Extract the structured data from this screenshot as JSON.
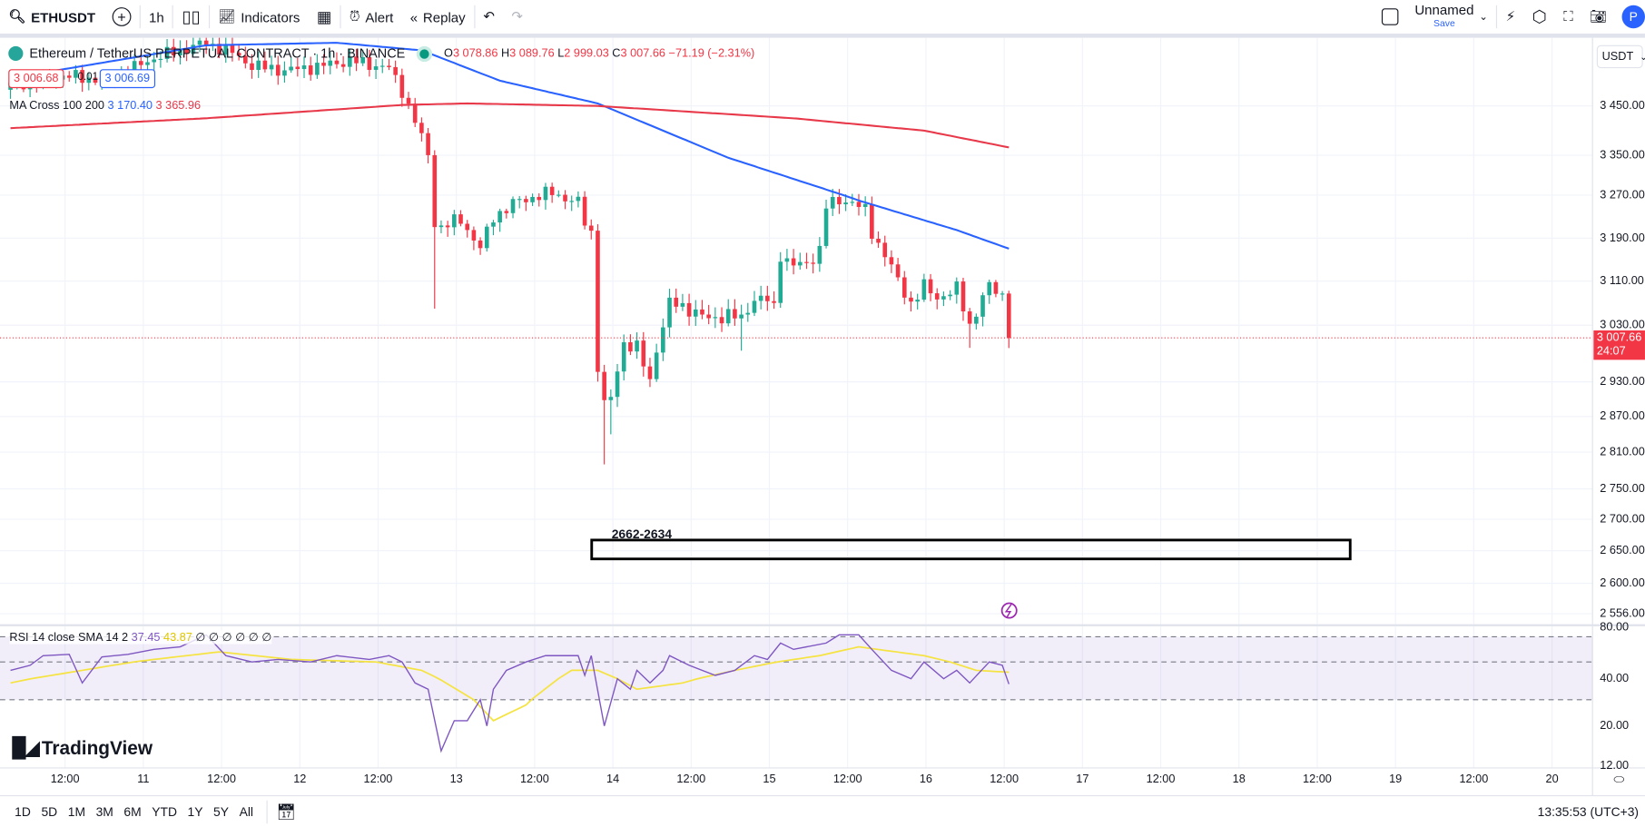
{
  "toolbar": {
    "symbol": "ETHUSDT",
    "interval": "1h",
    "indicators": "Indicators",
    "alert": "Alert",
    "replay": "Replay",
    "layout_name": "Unnamed",
    "save": "Save",
    "avatar": "P"
  },
  "legend": {
    "title": "Ethereum / TetherUS PERPETUAL CONTRACT · 1h · BINANCE",
    "o_label": "O",
    "o": "3 078.86",
    "h_label": "H",
    "h": "3 089.76",
    "l_label": "L",
    "l": "2 999.03",
    "c_label": "C",
    "c": "3 007.66",
    "change": "−71.19 (−2.31%)",
    "bid": "3 006.68",
    "spread": "0.01",
    "ask": "3 006.69"
  },
  "ma": {
    "label": "MA Cross 100 200",
    "v1": "3 170.40",
    "v2": "3 365.96"
  },
  "rsi": {
    "label": "RSI 14 close SMA 14 2",
    "v1": "37.45",
    "v2": "43.87",
    "rest": "∅ ∅ ∅ ∅ ∅ ∅"
  },
  "price_axis": {
    "currency": "USDT",
    "ticks": [
      "3 450.00",
      "3 350.00",
      "3 270.00",
      "3 190.00",
      "3 110.00",
      "3 030.00",
      "2 930.00",
      "2 870.00",
      "2 810.00",
      "2 750.00",
      "2 700.00",
      "2 650.00",
      "2 600.00",
      "2 556.00"
    ],
    "tick_values": [
      3450,
      3350,
      3270,
      3190,
      3110,
      3030,
      2930,
      2870,
      2810,
      2750,
      2700,
      2650,
      2600,
      2556
    ],
    "last_price": "3 007.66",
    "countdown": "24:07"
  },
  "rsi_axis": {
    "ticks": [
      "80.00",
      "40.00",
      "20.00",
      "12.00"
    ]
  },
  "time_axis": [
    "12:00",
    "11",
    "12:00",
    "12",
    "12:00",
    "13",
    "12:00",
    "14",
    "12:00",
    "15",
    "12:00",
    "16",
    "12:00",
    "17",
    "12:00",
    "18",
    "12:00",
    "19",
    "12:00",
    "20"
  ],
  "zone": {
    "label": "2662-2634",
    "high": 2662,
    "low": 2634
  },
  "bottom": {
    "ranges": [
      "1D",
      "5D",
      "1M",
      "3M",
      "6M",
      "YTD",
      "1Y",
      "5Y",
      "All"
    ],
    "clock": "13:35:53 (UTC+3)"
  },
  "brand": "TradingView",
  "colors": {
    "up": "#22ab94",
    "down": "#f23645",
    "ma100": "#2962ff",
    "ma200": "#e8394a",
    "rsi": "#7e57c2",
    "rsi_sma": "#f5e342"
  },
  "chart_data": {
    "type": "candlestick",
    "close_path": [
      [
        0,
        3490
      ],
      [
        8,
        3510
      ],
      [
        15,
        3500
      ],
      [
        22,
        3545
      ],
      [
        30,
        3575
      ],
      [
        34,
        3555
      ],
      [
        37,
        3530
      ],
      [
        42,
        3520
      ],
      [
        47,
        3528
      ],
      [
        52,
        3540
      ],
      [
        56,
        3530
      ],
      [
        58,
        3525
      ],
      [
        60,
        3480
      ],
      [
        62,
        3420
      ],
      [
        64,
        3350
      ],
      [
        65,
        3220
      ],
      [
        66,
        3210
      ],
      [
        69,
        3225
      ],
      [
        72,
        3170
      ],
      [
        74,
        3230
      ],
      [
        78,
        3260
      ],
      [
        83,
        3275
      ],
      [
        87,
        3255
      ],
      [
        88,
        3220
      ],
      [
        89,
        3200
      ],
      [
        90,
        2960
      ],
      [
        91,
        2890
      ],
      [
        92,
        2900
      ],
      [
        94,
        3000
      ],
      [
        96,
        2990
      ],
      [
        98,
        2930
      ],
      [
        99,
        2990
      ],
      [
        101,
        3070
      ],
      [
        104,
        3060
      ],
      [
        107,
        3040
      ],
      [
        110,
        3050
      ],
      [
        112,
        3040
      ],
      [
        114,
        3080
      ],
      [
        116,
        3075
      ],
      [
        117,
        3060
      ],
      [
        118,
        3160
      ],
      [
        120,
        3140
      ],
      [
        122,
        3140
      ],
      [
        124,
        3170
      ],
      [
        125,
        3250
      ],
      [
        128,
        3262
      ],
      [
        130,
        3250
      ],
      [
        131,
        3240
      ],
      [
        132,
        3200
      ],
      [
        134,
        3160
      ],
      [
        136,
        3110
      ],
      [
        138,
        3070
      ],
      [
        140,
        3100
      ],
      [
        142,
        3080
      ],
      [
        145,
        3095
      ],
      [
        147,
        3030
      ],
      [
        149,
        3080
      ],
      [
        150,
        3100
      ],
      [
        152,
        3085
      ],
      [
        153,
        3007.66
      ]
    ],
    "long_wicks": [
      [
        65,
        3060
      ],
      [
        91,
        2790
      ],
      [
        92,
        2840
      ],
      [
        112,
        2985
      ],
      [
        147,
        2990
      ]
    ],
    "ma100": [
      [
        0,
        3505
      ],
      [
        30,
        3570
      ],
      [
        50,
        3575
      ],
      [
        63,
        3560
      ],
      [
        75,
        3500
      ],
      [
        90,
        3455
      ],
      [
        110,
        3345
      ],
      [
        130,
        3260
      ],
      [
        145,
        3205
      ],
      [
        153,
        3170.4
      ]
    ],
    "ma200": [
      [
        0,
        3405
      ],
      [
        30,
        3425
      ],
      [
        60,
        3452
      ],
      [
        70,
        3455
      ],
      [
        90,
        3450
      ],
      [
        120,
        3425
      ],
      [
        140,
        3400
      ],
      [
        153,
        3365.96
      ]
    ],
    "rsi": [
      [
        0,
        45
      ],
      [
        3,
        48
      ],
      [
        5,
        55
      ],
      [
        9,
        56
      ],
      [
        11,
        38
      ],
      [
        14,
        54
      ],
      [
        18,
        56
      ],
      [
        22,
        60
      ],
      [
        26,
        62
      ],
      [
        30,
        72
      ],
      [
        33,
        55
      ],
      [
        37,
        50
      ],
      [
        41,
        52
      ],
      [
        46,
        50
      ],
      [
        50,
        55
      ],
      [
        55,
        52
      ],
      [
        58,
        55
      ],
      [
        60,
        50
      ],
      [
        62,
        38
      ],
      [
        64,
        35
      ],
      [
        66,
        15
      ],
      [
        68,
        22
      ],
      [
        70,
        22
      ],
      [
        72,
        30
      ],
      [
        73,
        20
      ],
      [
        74,
        35
      ],
      [
        76,
        45
      ],
      [
        79,
        50
      ],
      [
        82,
        55
      ],
      [
        87,
        55
      ],
      [
        88,
        42
      ],
      [
        89,
        55
      ],
      [
        91,
        20
      ],
      [
        93,
        40
      ],
      [
        95,
        35
      ],
      [
        96,
        45
      ],
      [
        98,
        38
      ],
      [
        100,
        45
      ],
      [
        101,
        55
      ],
      [
        104,
        48
      ],
      [
        108,
        42
      ],
      [
        111,
        45
      ],
      [
        114,
        55
      ],
      [
        116,
        52
      ],
      [
        118,
        65
      ],
      [
        120,
        60
      ],
      [
        125,
        65
      ],
      [
        127,
        72
      ],
      [
        130,
        72
      ],
      [
        132,
        60
      ],
      [
        135,
        45
      ],
      [
        138,
        40
      ],
      [
        140,
        50
      ],
      [
        143,
        40
      ],
      [
        145,
        45
      ],
      [
        147,
        38
      ],
      [
        150,
        50
      ],
      [
        152,
        48
      ],
      [
        153,
        37.45
      ]
    ],
    "rsi_sma": [
      [
        0,
        38
      ],
      [
        11,
        45
      ],
      [
        22,
        52
      ],
      [
        32,
        58
      ],
      [
        43,
        52
      ],
      [
        56,
        50
      ],
      [
        63,
        45
      ],
      [
        71,
        30
      ],
      [
        74,
        22
      ],
      [
        79,
        28
      ],
      [
        86,
        45
      ],
      [
        90,
        45
      ],
      [
        96,
        35
      ],
      [
        103,
        38
      ],
      [
        111,
        45
      ],
      [
        124,
        55
      ],
      [
        130,
        62
      ],
      [
        140,
        55
      ],
      [
        148,
        45
      ],
      [
        153,
        43.87
      ]
    ]
  }
}
